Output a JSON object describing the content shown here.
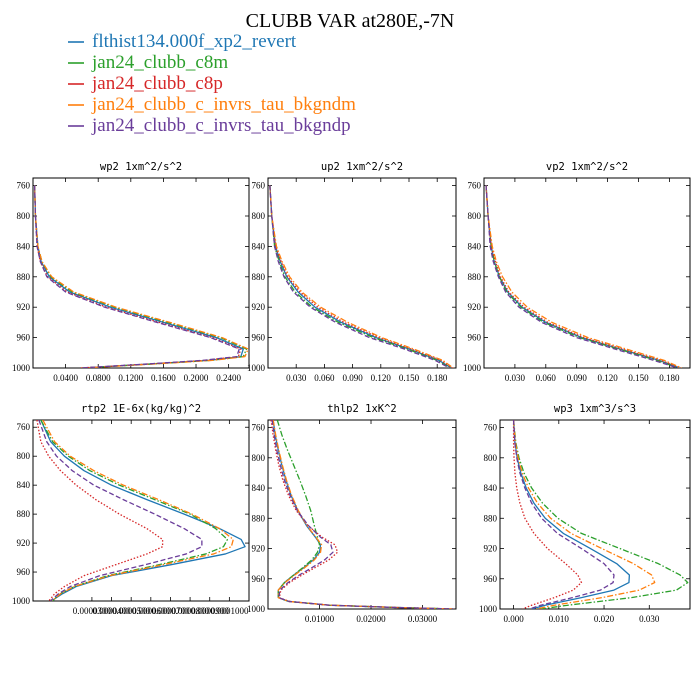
{
  "figure_title": "CLUBB VAR at280E,-7N",
  "legend": [
    {
      "label": "flthist134.000f_xp2_revert",
      "color": "#1f77b4",
      "dash": "solid"
    },
    {
      "label": "jan24_clubb_c8m",
      "color": "#2ca02c",
      "dash": "dashdot"
    },
    {
      "label": "jan24_clubb_c8p",
      "color": "#d62728",
      "dash": "dotted"
    },
    {
      "label": "jan24_clubb_c_invrs_tau_bkgndm",
      "color": "#ff7f0e",
      "dash": "dashdot"
    },
    {
      "label": "jan24_clubb_c_invrs_tau_bkgndp",
      "color": "#6a3d9a",
      "dash": "dashed"
    }
  ],
  "chart_data": [
    {
      "type": "line",
      "title": "wp2  1xm^2/s^2",
      "xlim": [
        0,
        0.265
      ],
      "ylim": [
        1000,
        750
      ],
      "xticks": [
        0.04,
        0.08,
        0.12,
        0.16,
        0.2,
        0.24
      ],
      "xtick_labels": [
        "0.0400",
        "0.0800",
        "0.1200",
        "0.1600",
        "0.2000",
        "0.2400"
      ],
      "yticks": [
        760,
        800,
        840,
        880,
        920,
        960,
        1000
      ],
      "y": [
        760,
        800,
        840,
        860,
        880,
        900,
        920,
        940,
        960,
        975,
        985,
        990,
        995,
        1000
      ],
      "series": [
        {
          "values": [
            0.002,
            0.003,
            0.006,
            0.01,
            0.02,
            0.045,
            0.095,
            0.16,
            0.225,
            0.258,
            0.255,
            0.215,
            0.14,
            0.06
          ]
        },
        {
          "values": [
            0.002,
            0.003,
            0.006,
            0.011,
            0.022,
            0.048,
            0.1,
            0.165,
            0.23,
            0.262,
            0.258,
            0.218,
            0.142,
            0.06
          ]
        },
        {
          "values": [
            0.002,
            0.003,
            0.005,
            0.009,
            0.018,
            0.042,
            0.09,
            0.155,
            0.22,
            0.255,
            0.252,
            0.21,
            0.138,
            0.058
          ]
        },
        {
          "values": [
            0.002,
            0.003,
            0.006,
            0.011,
            0.023,
            0.05,
            0.102,
            0.168,
            0.232,
            0.264,
            0.26,
            0.22,
            0.144,
            0.062
          ]
        },
        {
          "values": [
            0.002,
            0.003,
            0.005,
            0.009,
            0.017,
            0.04,
            0.088,
            0.152,
            0.218,
            0.253,
            0.25,
            0.208,
            0.136,
            0.058
          ]
        }
      ]
    },
    {
      "type": "line",
      "title": "up2  1xm^2/s^2",
      "xlim": [
        0,
        0.2
      ],
      "ylim": [
        1000,
        750
      ],
      "xticks": [
        0.03,
        0.06,
        0.09,
        0.12,
        0.15,
        0.18
      ],
      "xtick_labels": [
        "0.030",
        "0.060",
        "0.090",
        "0.120",
        "0.150",
        "0.180"
      ],
      "yticks": [
        760,
        800,
        840,
        880,
        920,
        960,
        1000
      ],
      "y": [
        760,
        800,
        840,
        860,
        880,
        900,
        920,
        940,
        960,
        975,
        990,
        1000
      ],
      "series": [
        {
          "values": [
            0.002,
            0.004,
            0.008,
            0.013,
            0.02,
            0.032,
            0.05,
            0.078,
            0.115,
            0.15,
            0.182,
            0.195
          ]
        },
        {
          "values": [
            0.002,
            0.004,
            0.007,
            0.012,
            0.018,
            0.029,
            0.047,
            0.075,
            0.112,
            0.148,
            0.18,
            0.194
          ]
        },
        {
          "values": [
            0.002,
            0.004,
            0.008,
            0.014,
            0.021,
            0.034,
            0.053,
            0.081,
            0.118,
            0.152,
            0.184,
            0.196
          ]
        },
        {
          "values": [
            0.002,
            0.004,
            0.009,
            0.015,
            0.023,
            0.036,
            0.056,
            0.085,
            0.121,
            0.155,
            0.186,
            0.197
          ]
        },
        {
          "values": [
            0.002,
            0.004,
            0.007,
            0.011,
            0.017,
            0.027,
            0.045,
            0.072,
            0.108,
            0.145,
            0.178,
            0.193
          ]
        }
      ]
    },
    {
      "type": "line",
      "title": "vp2  1xm^2/s^2",
      "xlim": [
        0,
        0.2
      ],
      "ylim": [
        1000,
        750
      ],
      "xticks": [
        0.03,
        0.06,
        0.09,
        0.12,
        0.15,
        0.18
      ],
      "xtick_labels": [
        "0.030",
        "0.060",
        "0.090",
        "0.120",
        "0.150",
        "0.180"
      ],
      "yticks": [
        760,
        800,
        840,
        880,
        920,
        960,
        1000
      ],
      "y": [
        760,
        800,
        840,
        860,
        880,
        900,
        920,
        940,
        960,
        975,
        990,
        1000
      ],
      "series": [
        {
          "values": [
            0.002,
            0.004,
            0.007,
            0.01,
            0.015,
            0.023,
            0.037,
            0.06,
            0.095,
            0.132,
            0.17,
            0.19
          ]
        },
        {
          "values": [
            0.002,
            0.004,
            0.007,
            0.01,
            0.015,
            0.022,
            0.036,
            0.058,
            0.093,
            0.13,
            0.168,
            0.189
          ]
        },
        {
          "values": [
            0.002,
            0.004,
            0.007,
            0.011,
            0.016,
            0.024,
            0.039,
            0.062,
            0.097,
            0.134,
            0.172,
            0.191
          ]
        },
        {
          "values": [
            0.002,
            0.004,
            0.008,
            0.012,
            0.018,
            0.027,
            0.042,
            0.066,
            0.101,
            0.138,
            0.175,
            0.192
          ]
        },
        {
          "values": [
            0.002,
            0.004,
            0.006,
            0.009,
            0.014,
            0.021,
            0.034,
            0.056,
            0.09,
            0.127,
            0.165,
            0.188
          ]
        }
      ]
    },
    {
      "type": "line",
      "title": "rtp2  1E-6x(kg/kg)^2",
      "xlim": [
        0,
        0.00011
      ],
      "ylim": [
        1000,
        750
      ],
      "xticks": [
        3e-05,
        4e-05,
        5e-05,
        6e-05,
        7e-05,
        8e-05,
        9e-05,
        0.0001
      ],
      "xtick_labels": [
        "0.0000300",
        "0.0000400",
        "0.0000500",
        "0.0000600",
        "0.0000700",
        "0.0000800",
        "0.0000900",
        "0.0001000"
      ],
      "yticks": [
        760,
        800,
        840,
        880,
        920,
        960,
        1000
      ],
      "y": [
        750,
        780,
        800,
        820,
        840,
        860,
        880,
        900,
        915,
        925,
        935,
        950,
        965,
        980,
        990,
        997,
        1000
      ],
      "series": [
        {
          "values": [
            4e-06,
            9e-06,
            1.6e-05,
            2.6e-05,
            4e-05,
            5.8e-05,
            7.7e-05,
            9.5e-05,
            0.000106,
            0.000108,
            9.8e-05,
            7e-05,
            4e-05,
            2.2e-05,
            1.5e-05,
            1.1e-05,
            1e-05
          ]
        },
        {
          "values": [
            4e-06,
            1e-05,
            1.8e-05,
            2.9e-05,
            4.4e-05,
            6.2e-05,
            8e-05,
            9.3e-05,
            9.9e-05,
            9.7e-05,
            8.8e-05,
            6.4e-05,
            3.8e-05,
            2.1e-05,
            1.4e-05,
            1.1e-05,
            1e-05
          ]
        },
        {
          "values": [
            2e-06,
            4e-06,
            8e-06,
            1.4e-05,
            2.2e-05,
            3.2e-05,
            4.4e-05,
            5.8e-05,
            6.6e-05,
            6.6e-05,
            5.8e-05,
            4.2e-05,
            2.6e-05,
            1.6e-05,
            1.1e-05,
            9e-06,
            8e-06
          ]
        },
        {
          "values": [
            5e-06,
            1.1e-05,
            1.9e-05,
            3.1e-05,
            4.6e-05,
            6.4e-05,
            8.1e-05,
            9.5e-05,
            0.000102,
            0.000101,
            9.2e-05,
            6.6e-05,
            3.9e-05,
            2.1e-05,
            1.4e-05,
            1.1e-05,
            1e-05
          ]
        },
        {
          "values": [
            3e-06,
            7e-06,
            1.2e-05,
            2e-05,
            3.1e-05,
            4.6e-05,
            6.2e-05,
            7.7e-05,
            8.6e-05,
            8.6e-05,
            7.8e-05,
            5.7e-05,
            3.4e-05,
            1.9e-05,
            1.3e-05,
            1e-05,
            9e-06
          ]
        }
      ]
    },
    {
      "type": "line",
      "title": "thlp2  1xK^2",
      "xlim": [
        0,
        0.0365
      ],
      "ylim": [
        1000,
        750
      ],
      "xticks": [
        0.01,
        0.02,
        0.03
      ],
      "xtick_labels": [
        "0.01000",
        "0.02000",
        "0.03000"
      ],
      "yticks": [
        760,
        800,
        840,
        880,
        920,
        960,
        1000
      ],
      "y": [
        750,
        770,
        790,
        810,
        830,
        850,
        870,
        890,
        905,
        915,
        925,
        935,
        945,
        955,
        965,
        975,
        985,
        990,
        995,
        998,
        1000
      ],
      "series": [
        {
          "values": [
            0.001,
            0.0014,
            0.002,
            0.0027,
            0.0035,
            0.0045,
            0.0058,
            0.0075,
            0.0092,
            0.0102,
            0.01,
            0.0088,
            0.007,
            0.005,
            0.0032,
            0.002,
            0.002,
            0.004,
            0.012,
            0.025,
            0.036
          ]
        },
        {
          "values": [
            0.0018,
            0.0027,
            0.0038,
            0.005,
            0.0062,
            0.0073,
            0.0083,
            0.009,
            0.0096,
            0.01,
            0.0096,
            0.0085,
            0.0068,
            0.005,
            0.0032,
            0.002,
            0.002,
            0.004,
            0.012,
            0.025,
            0.036
          ]
        },
        {
          "values": [
            0.0006,
            0.001,
            0.0015,
            0.0021,
            0.0029,
            0.004,
            0.0055,
            0.0078,
            0.0105,
            0.013,
            0.0135,
            0.0118,
            0.0092,
            0.0066,
            0.0042,
            0.0025,
            0.0022,
            0.0042,
            0.012,
            0.025,
            0.036
          ]
        },
        {
          "values": [
            0.001,
            0.0015,
            0.0021,
            0.0028,
            0.0036,
            0.0046,
            0.0059,
            0.0076,
            0.0093,
            0.0104,
            0.0102,
            0.009,
            0.0072,
            0.0052,
            0.0033,
            0.002,
            0.002,
            0.004,
            0.012,
            0.025,
            0.036
          ]
        },
        {
          "values": [
            0.0008,
            0.0012,
            0.0017,
            0.0024,
            0.0032,
            0.0043,
            0.0057,
            0.0079,
            0.0102,
            0.0122,
            0.0126,
            0.011,
            0.0086,
            0.0061,
            0.0039,
            0.0023,
            0.0021,
            0.0041,
            0.012,
            0.025,
            0.036
          ]
        }
      ]
    },
    {
      "type": "line",
      "title": "wp3  1xm^3/s^3",
      "xlim": [
        -0.003,
        0.039
      ],
      "ylim": [
        1000,
        750
      ],
      "xticks": [
        0.0,
        0.01,
        0.02,
        0.03
      ],
      "xtick_labels": [
        "0.000",
        "0.010",
        "0.020",
        "0.030"
      ],
      "yticks": [
        760,
        800,
        840,
        880,
        920,
        960,
        1000
      ],
      "y": [
        750,
        780,
        800,
        820,
        840,
        860,
        880,
        900,
        920,
        940,
        955,
        965,
        975,
        985,
        995,
        1000
      ],
      "series": [
        {
          "values": [
            0.0,
            0.0003,
            0.0008,
            0.0016,
            0.0028,
            0.0045,
            0.007,
            0.011,
            0.017,
            0.0228,
            0.0256,
            0.0255,
            0.0222,
            0.015,
            0.007,
            0.004
          ]
        },
        {
          "values": [
            0.0,
            0.0005,
            0.0012,
            0.0023,
            0.004,
            0.0064,
            0.0098,
            0.015,
            0.0235,
            0.032,
            0.0368,
            0.0385,
            0.036,
            0.026,
            0.012,
            0.006
          ]
        },
        {
          "values": [
            0.0,
            0.0,
            0.0001,
            0.0003,
            0.0007,
            0.0014,
            0.0025,
            0.0045,
            0.0075,
            0.0115,
            0.0142,
            0.015,
            0.0132,
            0.009,
            0.004,
            0.002
          ]
        },
        {
          "values": [
            0.0,
            0.0004,
            0.001,
            0.0019,
            0.0033,
            0.0053,
            0.0082,
            0.0127,
            0.0195,
            0.0265,
            0.0305,
            0.0312,
            0.0278,
            0.0195,
            0.009,
            0.005
          ]
        },
        {
          "values": [
            0.0,
            0.0003,
            0.0007,
            0.0014,
            0.0025,
            0.004,
            0.0062,
            0.0097,
            0.015,
            0.02,
            0.0222,
            0.022,
            0.0192,
            0.013,
            0.006,
            0.0035
          ]
        }
      ]
    }
  ]
}
